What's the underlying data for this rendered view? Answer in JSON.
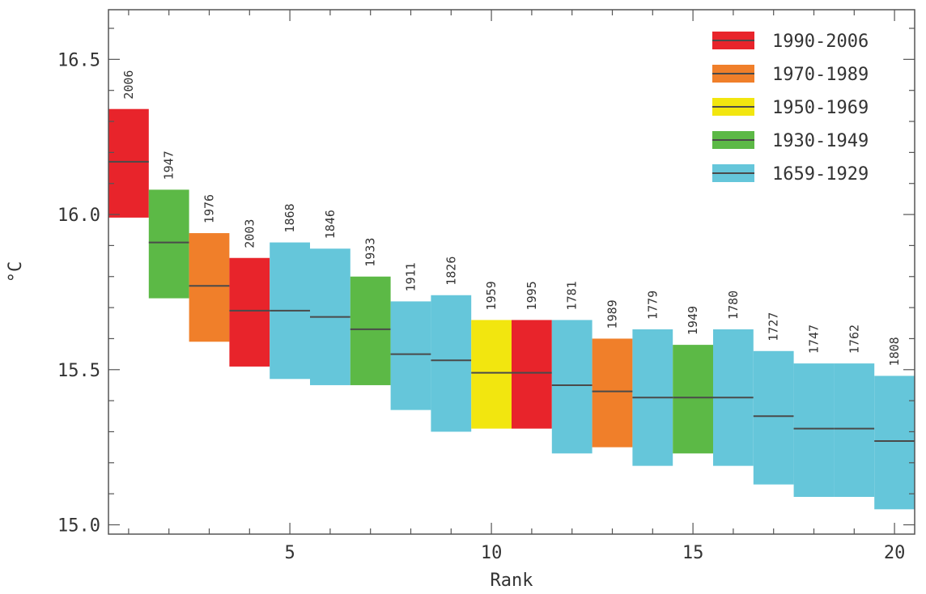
{
  "chart_data": {
    "type": "bar",
    "title": "",
    "xlabel": "Rank",
    "ylabel": "°C",
    "xlim": [
      0.5,
      20.5
    ],
    "ylim": [
      14.97,
      16.66
    ],
    "xticks": [
      5,
      10,
      15,
      20
    ],
    "yticks": [
      15.0,
      15.5,
      16.0,
      16.5
    ],
    "ytick_labels": [
      "15.0",
      "15.5",
      "16.0",
      "16.5"
    ],
    "grid": false,
    "legend_position": "top-right",
    "series": [
      {
        "name": "1990-2006",
        "color": "#e8242b"
      },
      {
        "name": "1970-1989",
        "color": "#f07f2a"
      },
      {
        "name": "1950-1969",
        "color": "#f2e60f"
      },
      {
        "name": "1930-1949",
        "color": "#5cb946"
      },
      {
        "name": "1659-1929",
        "color": "#65c6da"
      }
    ],
    "bars": [
      {
        "rank": 1,
        "year": "2006",
        "series": 0,
        "low": 15.99,
        "high": 16.34,
        "mean": 16.17
      },
      {
        "rank": 2,
        "year": "1947",
        "series": 3,
        "low": 15.73,
        "high": 16.08,
        "mean": 15.91
      },
      {
        "rank": 3,
        "year": "1976",
        "series": 1,
        "low": 15.59,
        "high": 15.94,
        "mean": 15.77
      },
      {
        "rank": 4,
        "year": "2003",
        "series": 0,
        "low": 15.51,
        "high": 15.86,
        "mean": 15.69
      },
      {
        "rank": 5,
        "year": "1868",
        "series": 4,
        "low": 15.47,
        "high": 15.91,
        "mean": 15.69
      },
      {
        "rank": 6,
        "year": "1846",
        "series": 4,
        "low": 15.45,
        "high": 15.89,
        "mean": 15.67
      },
      {
        "rank": 7,
        "year": "1933",
        "series": 3,
        "low": 15.45,
        "high": 15.8,
        "mean": 15.63
      },
      {
        "rank": 8,
        "year": "1911",
        "series": 4,
        "low": 15.37,
        "high": 15.72,
        "mean": 15.55
      },
      {
        "rank": 9,
        "year": "1826",
        "series": 4,
        "low": 15.3,
        "high": 15.74,
        "mean": 15.53
      },
      {
        "rank": 10,
        "year": "1959",
        "series": 2,
        "low": 15.31,
        "high": 15.66,
        "mean": 15.49
      },
      {
        "rank": 11,
        "year": "1995",
        "series": 0,
        "low": 15.31,
        "high": 15.66,
        "mean": 15.49
      },
      {
        "rank": 12,
        "year": "1781",
        "series": 4,
        "low": 15.23,
        "high": 15.66,
        "mean": 15.45
      },
      {
        "rank": 13,
        "year": "1989",
        "series": 1,
        "low": 15.25,
        "high": 15.6,
        "mean": 15.43
      },
      {
        "rank": 14,
        "year": "1779",
        "series": 4,
        "low": 15.19,
        "high": 15.63,
        "mean": 15.41
      },
      {
        "rank": 15,
        "year": "1949",
        "series": 3,
        "low": 15.23,
        "high": 15.58,
        "mean": 15.41
      },
      {
        "rank": 16,
        "year": "1780",
        "series": 4,
        "low": 15.19,
        "high": 15.63,
        "mean": 15.41
      },
      {
        "rank": 17,
        "year": "1727",
        "series": 4,
        "low": 15.13,
        "high": 15.56,
        "mean": 15.35
      },
      {
        "rank": 18,
        "year": "1747",
        "series": 4,
        "low": 15.09,
        "high": 15.52,
        "mean": 15.31
      },
      {
        "rank": 19,
        "year": "1762",
        "series": 4,
        "low": 15.09,
        "high": 15.52,
        "mean": 15.31
      },
      {
        "rank": 20,
        "year": "1808",
        "series": 4,
        "low": 15.05,
        "high": 15.48,
        "mean": 15.27
      }
    ]
  }
}
